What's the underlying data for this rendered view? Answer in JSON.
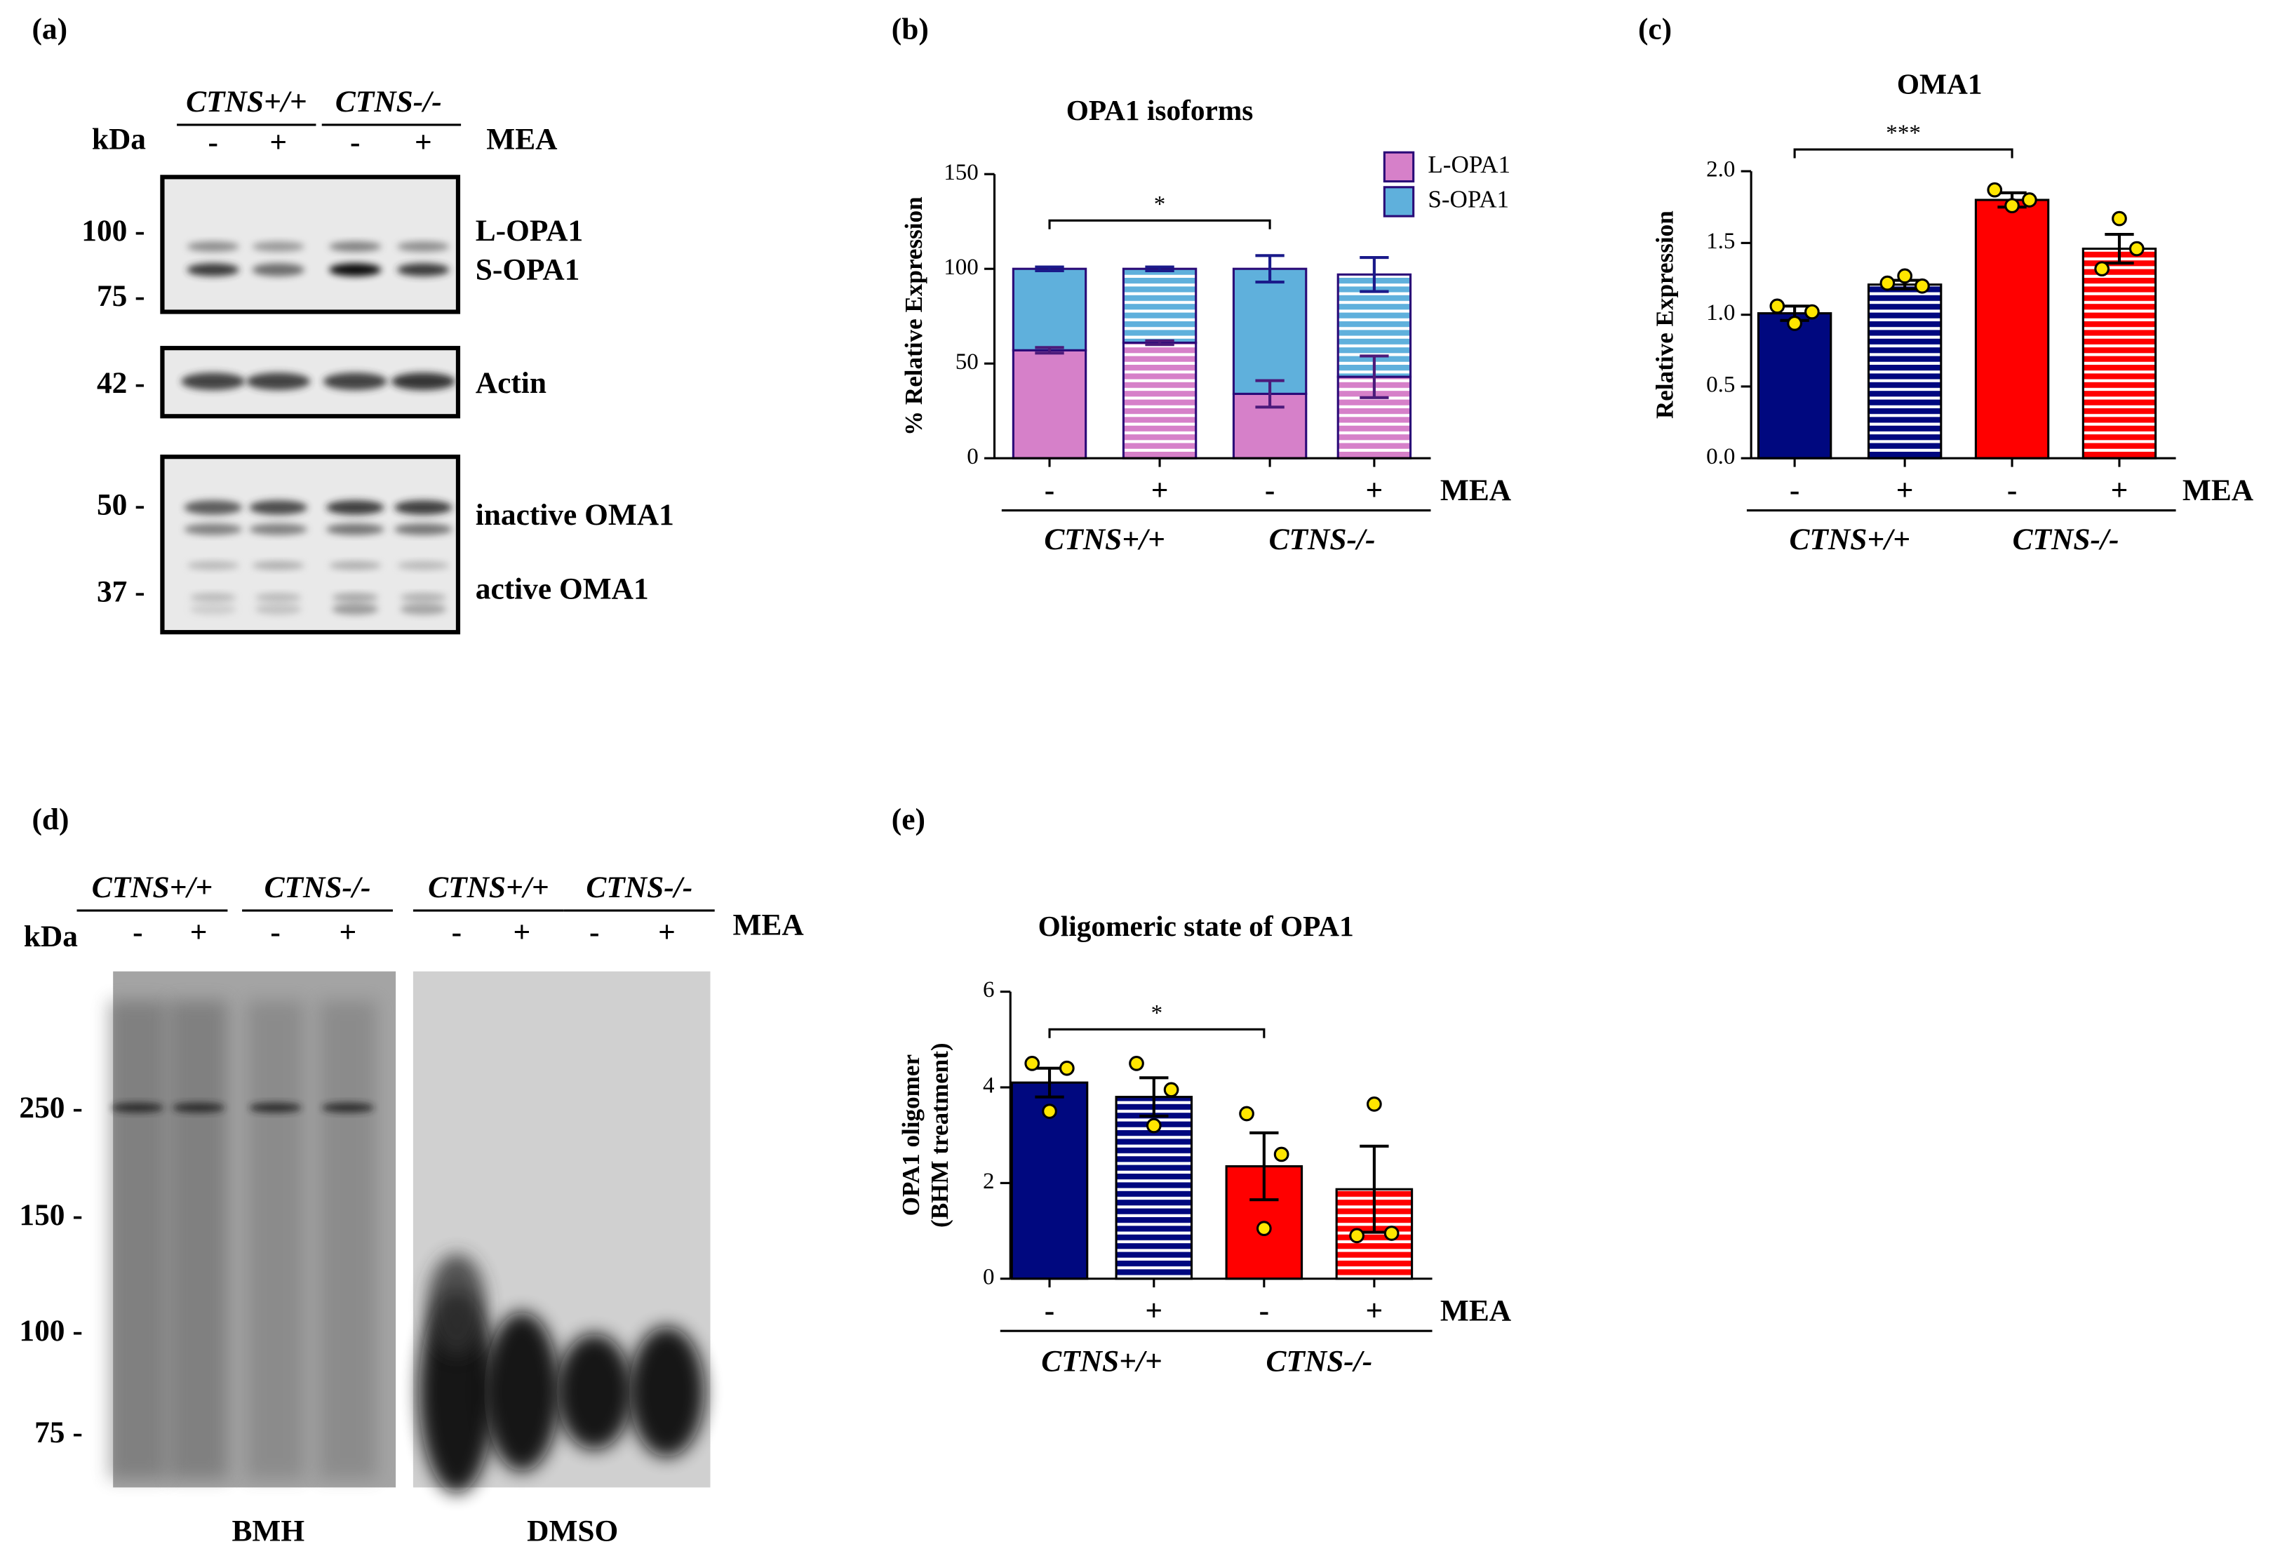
{
  "panel_labels": [
    "(a)",
    "(b)",
    "(c)",
    "(d)",
    "(e)"
  ],
  "blot_a": {
    "groups": [
      "CTNS+/+",
      "CTNS-/-"
    ],
    "treatments": [
      "-",
      "+",
      "-",
      "+"
    ],
    "treatment_label": "MEA",
    "unit": "kDa",
    "markers": [
      "100 -",
      "75 -",
      "42 -",
      "50 -",
      "37 -"
    ],
    "bands": [
      "L-OPA1",
      "S-OPA1",
      "Actin",
      "inactive OMA1",
      "active OMA1"
    ]
  },
  "blot_d": {
    "groups": [
      "CTNS+/+",
      "CTNS-/-",
      "CTNS+/+",
      "CTNS-/-"
    ],
    "treatments": [
      "-",
      "+",
      "-",
      "+",
      "-",
      "+",
      "-",
      "+"
    ],
    "treatment_label": "MEA",
    "unit": "kDa",
    "markers": [
      "250 -",
      "150 -",
      "100 -",
      "75 -"
    ],
    "conditions": [
      "BMH",
      "DMSO"
    ]
  },
  "chart_data": [
    {
      "type": "stacked_bar",
      "title": "OPA1 isoforms",
      "y_label": [
        "% Relative Expression"
      ],
      "categories": [
        "-",
        "+",
        "-",
        "+"
      ],
      "groups": [
        "CTNS+/+",
        "CTNS-/-"
      ],
      "treatment_label": "MEA",
      "series": [
        {
          "name": "L-OPA1",
          "color": "#d680c9",
          "values": [
            57,
            61,
            34,
            43
          ],
          "errors": [
            1.5,
            1,
            7,
            11
          ]
        },
        {
          "name": "S-OPA1",
          "color": "#5fb0dc",
          "values": [
            43,
            39,
            66,
            54
          ],
          "errors": [
            1,
            1,
            7,
            9
          ]
        }
      ],
      "hatched": [
        false,
        true,
        false,
        true
      ],
      "edge_color": "#2a0a78",
      "ylim": [
        0,
        150
      ],
      "yticks": [
        0,
        50,
        100,
        150
      ],
      "annotations": [
        "*"
      ],
      "legend": "upper right"
    },
    {
      "type": "bar",
      "title": "OMA1",
      "y_label": [
        "Relative Expression"
      ],
      "categories": [
        "-",
        "+",
        "-",
        "+"
      ],
      "groups": [
        "CTNS+/+",
        "CTNS-/-"
      ],
      "treatment_label": "MEA",
      "values": [
        1.01,
        1.21,
        1.8,
        1.46
      ],
      "errors": [
        0.05,
        0.03,
        0.05,
        0.1
      ],
      "points": [
        [
          1.06,
          0.94,
          1.02
        ],
        [
          1.22,
          1.27,
          1.2
        ],
        [
          1.87,
          1.76,
          1.8
        ],
        [
          1.32,
          1.67,
          1.46
        ]
      ],
      "colors": [
        "#00087f",
        "#00087f",
        "#ff0000",
        "#ff0000"
      ],
      "hatched": [
        false,
        true,
        false,
        true
      ],
      "point_color": "#ffe600",
      "ylim": [
        0,
        2
      ],
      "yticks": [
        {
          "value": 0,
          "label": "0.0"
        },
        {
          "value": 0.5,
          "label": "0.5"
        },
        {
          "value": 1,
          "label": "1.0"
        },
        {
          "value": 1.5,
          "label": "1.5"
        },
        {
          "value": 2,
          "label": "2.0"
        }
      ],
      "annotations": [
        "***"
      ]
    },
    {
      "type": "bar",
      "title": "Oligomeric state of OPA1",
      "y_label": [
        "OPA1 oligomer",
        "(BHM treatment)"
      ],
      "categories": [
        "-",
        "+",
        "-",
        "+"
      ],
      "groups": [
        "CTNS+/+",
        "CTNS-/-"
      ],
      "treatment_label": "MEA",
      "values": [
        4.1,
        3.8,
        2.35,
        1.87
      ],
      "errors": [
        0.3,
        0.4,
        0.7,
        0.9
      ],
      "points": [
        [
          4.5,
          3.5,
          4.4
        ],
        [
          4.5,
          3.2,
          3.95
        ],
        [
          3.45,
          1.05,
          2.6
        ],
        [
          0.9,
          3.65,
          0.95
        ]
      ],
      "colors": [
        "#00087f",
        "#00087f",
        "#ff0000",
        "#ff0000"
      ],
      "hatched": [
        false,
        true,
        false,
        true
      ],
      "point_color": "#ffe600",
      "ylim": [
        0,
        6
      ],
      "yticks": [
        0,
        2,
        4,
        6
      ],
      "annotations": [
        "*"
      ]
    }
  ]
}
